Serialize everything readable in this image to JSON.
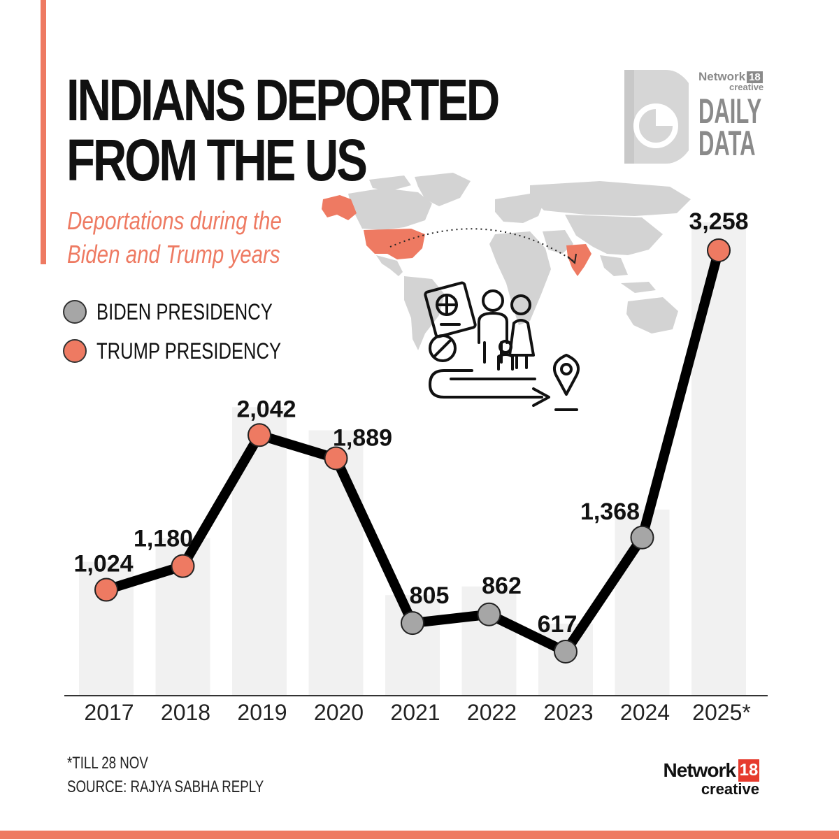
{
  "header": {
    "title_line1": "INDIANS DEPORTED",
    "title_line2": "FROM THE US",
    "subtitle_line1": "Deportations during the",
    "subtitle_line2": "Biden and Trump years"
  },
  "legend": {
    "biden": "BIDEN PRESIDENCY",
    "trump": "TRUMP PRESIDENCY"
  },
  "logo_top": {
    "network": "Network",
    "network_num": "18",
    "creative": "creative",
    "daily": "DAILY",
    "data": "DATA"
  },
  "colors": {
    "trump": "#ee7a62",
    "biden": "#a6a6a6",
    "accent": "#ee7a62",
    "line": "#000000",
    "band": "#f1f1f1"
  },
  "chart_data": {
    "type": "line",
    "title": "INDIANS DEPORTED FROM THE US",
    "subtitle": "Deportations during the Biden and Trump years",
    "categories": [
      "2017",
      "2018",
      "2019",
      "2020",
      "2021",
      "2022",
      "2023",
      "2024",
      "2025*"
    ],
    "values": [
      1024,
      1180,
      2042,
      1889,
      805,
      862,
      617,
      1368,
      3258
    ],
    "value_labels": [
      "1,024",
      "1,180",
      "2,042",
      "1,889",
      "805",
      "862",
      "617",
      "1,368",
      "3,258"
    ],
    "presidency": [
      "Trump",
      "Trump",
      "Trump",
      "Trump",
      "Biden",
      "Biden",
      "Biden",
      "Biden",
      "Trump"
    ],
    "series": [
      {
        "name": "Indians deported",
        "values": [
          1024,
          1180,
          2042,
          1889,
          805,
          862,
          617,
          1368,
          3258
        ]
      }
    ],
    "legend": [
      "BIDEN PRESIDENCY",
      "TRUMP PRESIDENCY"
    ],
    "xlabel": "",
    "ylabel": "",
    "ylim": [
      0,
      3400
    ],
    "grid": false
  },
  "footer": {
    "note": "*TILL 28 NOV",
    "source": "SOURCE: RAJYA SABHA REPLY"
  },
  "logo_bottom": {
    "network": "Network",
    "network_num": "18",
    "creative": "creative"
  }
}
